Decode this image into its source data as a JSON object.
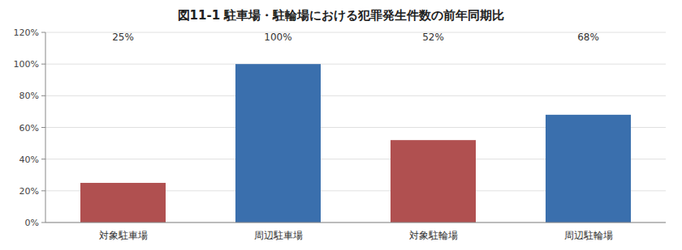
{
  "chart_data": {
    "type": "bar",
    "title": "図11-1  駐車場・駐輪場における犯罪発生件数の前年同期比",
    "categories": [
      "対象駐車場",
      "周辺駐車場",
      "対象駐輪場",
      "周辺駐輪場"
    ],
    "values": [
      25,
      100,
      52,
      68
    ],
    "value_labels": [
      "25%",
      "100%",
      "52%",
      "68%"
    ],
    "colors": [
      "#b05050",
      "#3a6fad",
      "#b05050",
      "#3a6fad"
    ],
    "ylim": [
      0,
      120
    ],
    "yticks": [
      {
        "value": 0,
        "label": "0%"
      },
      {
        "value": 20,
        "label": "20%"
      },
      {
        "value": 40,
        "label": "40%"
      },
      {
        "value": 60,
        "label": "60%"
      },
      {
        "value": 80,
        "label": "80%"
      },
      {
        "value": 100,
        "label": "100%"
      },
      {
        "value": 120,
        "label": "120%"
      }
    ],
    "grid": true,
    "data_labels": true
  }
}
